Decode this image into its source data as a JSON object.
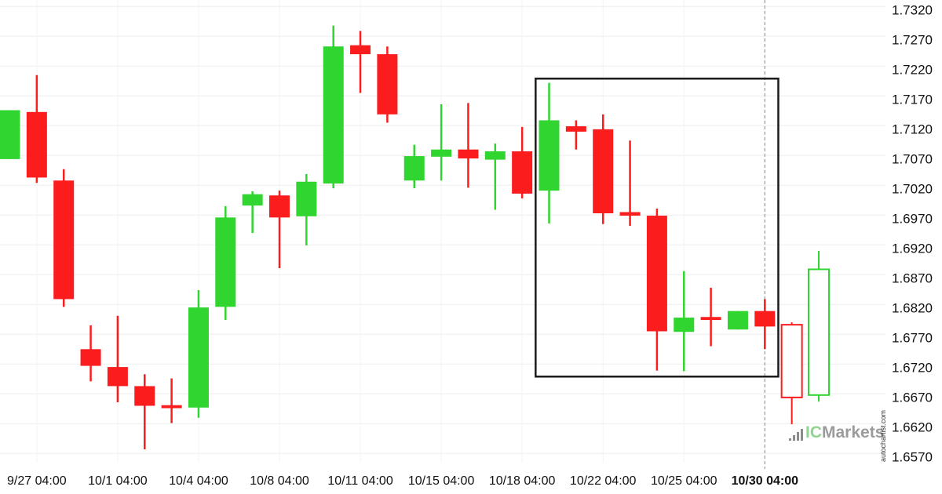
{
  "watermark": {
    "ic": "IC",
    "markets": "Markets",
    "vertical_text": "autochartist.com"
  },
  "chart_data": {
    "type": "candlestick",
    "title": "",
    "xlabel": "",
    "ylabel": "",
    "grid": true,
    "legend": "none",
    "y_axis": {
      "side": "right",
      "tick_labels": [
        "1.7320",
        "1.7270",
        "1.7220",
        "1.7170",
        "1.7120",
        "1.7070",
        "1.7020",
        "1.6970",
        "1.6920",
        "1.6870",
        "1.6820",
        "1.6770",
        "1.6720",
        "1.6670",
        "1.6620",
        "1.6570"
      ],
      "tick_step": 0.005,
      "range_top": 1.732,
      "range_bottom": 1.657
    },
    "x_axis": {
      "ticks": [
        {
          "label": "9/27 04:00",
          "candle_index": 1,
          "bold": false
        },
        {
          "label": "10/1 04:00",
          "candle_index": 4,
          "bold": false
        },
        {
          "label": "10/4 04:00",
          "candle_index": 7,
          "bold": false
        },
        {
          "label": "10/8 04:00",
          "candle_index": 10,
          "bold": false
        },
        {
          "label": "10/11 04:00",
          "candle_index": 13,
          "bold": false
        },
        {
          "label": "10/15 04:00",
          "candle_index": 16,
          "bold": false
        },
        {
          "label": "10/18 04:00",
          "candle_index": 19,
          "bold": false
        },
        {
          "label": "10/22 04:00",
          "candle_index": 22,
          "bold": false
        },
        {
          "label": "10/25 04:00",
          "candle_index": 25,
          "bold": false
        },
        {
          "label": "10/30 04:00",
          "candle_index": 28,
          "bold": true
        }
      ]
    },
    "candles": [
      {
        "o": 1.7064,
        "h": 1.7146,
        "l": 1.7064,
        "c": 1.7146,
        "dir": "up",
        "style": "solid"
      },
      {
        "o": 1.7143,
        "h": 1.7205,
        "l": 1.7024,
        "c": 1.7033,
        "dir": "down",
        "style": "solid"
      },
      {
        "o": 1.7028,
        "h": 1.7047,
        "l": 1.6816,
        "c": 1.6829,
        "dir": "down",
        "style": "solid"
      },
      {
        "o": 1.6745,
        "h": 1.6785,
        "l": 1.6691,
        "c": 1.6717,
        "dir": "down",
        "style": "solid"
      },
      {
        "o": 1.6715,
        "h": 1.6801,
        "l": 1.6656,
        "c": 1.6683,
        "dir": "down",
        "style": "solid"
      },
      {
        "o": 1.6683,
        "h": 1.6703,
        "l": 1.6577,
        "c": 1.665,
        "dir": "down",
        "style": "solid"
      },
      {
        "o": 1.6651,
        "h": 1.6696,
        "l": 1.6621,
        "c": 1.6646,
        "dir": "down",
        "style": "solid"
      },
      {
        "o": 1.6647,
        "h": 1.6844,
        "l": 1.663,
        "c": 1.6815,
        "dir": "up",
        "style": "solid"
      },
      {
        "o": 1.6816,
        "h": 1.6985,
        "l": 1.6794,
        "c": 1.6966,
        "dir": "up",
        "style": "solid"
      },
      {
        "o": 1.6986,
        "h": 1.701,
        "l": 1.694,
        "c": 1.7005,
        "dir": "up",
        "style": "solid"
      },
      {
        "o": 1.7003,
        "h": 1.7011,
        "l": 1.6881,
        "c": 1.6966,
        "dir": "down",
        "style": "solid"
      },
      {
        "o": 1.6968,
        "h": 1.7039,
        "l": 1.6919,
        "c": 1.7026,
        "dir": "up",
        "style": "solid"
      },
      {
        "o": 1.7023,
        "h": 1.7288,
        "l": 1.7015,
        "c": 1.7253,
        "dir": "up",
        "style": "solid"
      },
      {
        "o": 1.7255,
        "h": 1.7279,
        "l": 1.7175,
        "c": 1.724,
        "dir": "down",
        "style": "solid"
      },
      {
        "o": 1.724,
        "h": 1.7253,
        "l": 1.7125,
        "c": 1.7139,
        "dir": "down",
        "style": "solid"
      },
      {
        "o": 1.7028,
        "h": 1.7088,
        "l": 1.7015,
        "c": 1.7069,
        "dir": "up",
        "style": "solid"
      },
      {
        "o": 1.7068,
        "h": 1.7156,
        "l": 1.7028,
        "c": 1.708,
        "dir": "up",
        "style": "solid"
      },
      {
        "o": 1.708,
        "h": 1.7158,
        "l": 1.7016,
        "c": 1.7065,
        "dir": "down",
        "style": "solid"
      },
      {
        "o": 1.7063,
        "h": 1.709,
        "l": 1.6979,
        "c": 1.7077,
        "dir": "up",
        "style": "solid"
      },
      {
        "o": 1.7077,
        "h": 1.7118,
        "l": 1.6998,
        "c": 1.7006,
        "dir": "down",
        "style": "solid"
      },
      {
        "o": 1.7011,
        "h": 1.7192,
        "l": 1.6956,
        "c": 1.7129,
        "dir": "up",
        "style": "solid"
      },
      {
        "o": 1.7119,
        "h": 1.7129,
        "l": 1.708,
        "c": 1.711,
        "dir": "down",
        "style": "solid"
      },
      {
        "o": 1.7114,
        "h": 1.7139,
        "l": 1.6955,
        "c": 1.6973,
        "dir": "down",
        "style": "solid"
      },
      {
        "o": 1.6975,
        "h": 1.7095,
        "l": 1.6952,
        "c": 1.6969,
        "dir": "down",
        "style": "solid"
      },
      {
        "o": 1.6969,
        "h": 1.6981,
        "l": 1.6709,
        "c": 1.6775,
        "dir": "down",
        "style": "solid"
      },
      {
        "o": 1.6774,
        "h": 1.6876,
        "l": 1.6708,
        "c": 1.6798,
        "dir": "up",
        "style": "solid"
      },
      {
        "o": 1.6799,
        "h": 1.6848,
        "l": 1.675,
        "c": 1.6794,
        "dir": "down",
        "style": "solid"
      },
      {
        "o": 1.6778,
        "h": 1.6809,
        "l": 1.6778,
        "c": 1.6809,
        "dir": "up",
        "style": "solid"
      },
      {
        "o": 1.6809,
        "h": 1.6829,
        "l": 1.6745,
        "c": 1.6783,
        "dir": "down",
        "style": "solid"
      },
      {
        "o": 1.6786,
        "h": 1.679,
        "l": 1.6619,
        "c": 1.6664,
        "dir": "down",
        "style": "hollow"
      },
      {
        "o": 1.6668,
        "h": 1.691,
        "l": 1.6657,
        "c": 1.6879,
        "dir": "up",
        "style": "hollow"
      }
    ],
    "annotations": {
      "pattern_rectangle": {
        "candle_start": 19.5,
        "candle_end": 28.5,
        "price_top": 1.7199,
        "price_bottom": 1.6699
      },
      "vertical_dashed_line": {
        "candle_index": 28
      }
    },
    "colors": {
      "up": "#30d530",
      "down": "#fb1d1d",
      "grid_h": "#eeeeee",
      "grid_v": "#f3f3f3",
      "rectangle": "#1b1b1b",
      "dashed_line": "#9a9a9a",
      "axis_text": "#111111",
      "background": "#ffffff"
    }
  }
}
